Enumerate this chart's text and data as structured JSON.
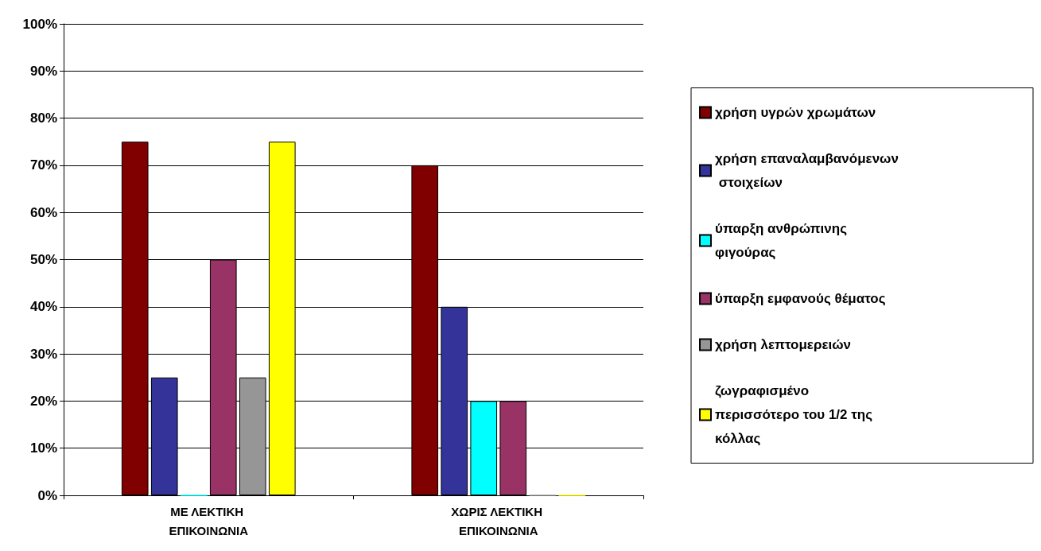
{
  "chart_data": {
    "type": "bar",
    "categories": [
      "ΜΕ ΛΕΚΤΙΚΗ ΕΠΙΚΟΙΝΩΝΙΑ",
      "ΧΩΡΙΣ ΛΕΚΤΙΚΗ ΕΠΙΚΟΙΝΩΝΙΑ"
    ],
    "series": [
      {
        "name": "χρήση υγρών χρωμάτων",
        "color": "#800000",
        "values": [
          75,
          70
        ]
      },
      {
        "name": "χρήση επαναλαμβανόμενων στοιχείων",
        "color": "#333399",
        "values": [
          25,
          40
        ]
      },
      {
        "name": "ύπαρξη ανθρώπινης φιγούρας",
        "color": "#00ffff",
        "values": [
          0,
          20
        ]
      },
      {
        "name": "ύπαρξη εμφανούς θέματος",
        "color": "#993366",
        "values": [
          50,
          20
        ]
      },
      {
        "name": "χρήση λεπτομερειών",
        "color": "#969696",
        "values": [
          25,
          0
        ]
      },
      {
        "name": "ζωγραφισμένο περισσότερο του 1/2 της κόλλας",
        "color": "#ffff00",
        "values": [
          75,
          0
        ]
      }
    ],
    "ylim": [
      0,
      100
    ],
    "yticks": [
      {
        "value": 0,
        "label": "0%"
      },
      {
        "value": 10,
        "label": "10%"
      },
      {
        "value": 20,
        "label": "20%"
      },
      {
        "value": 30,
        "label": "30%"
      },
      {
        "value": 40,
        "label": "40%"
      },
      {
        "value": 50,
        "label": "50%"
      },
      {
        "value": 60,
        "label": "60%"
      },
      {
        "value": 70,
        "label": "70%"
      },
      {
        "value": 80,
        "label": "80%"
      },
      {
        "value": 90,
        "label": "90%"
      },
      {
        "value": 100,
        "label": "100%"
      }
    ],
    "grid": "y",
    "legend": "right"
  }
}
